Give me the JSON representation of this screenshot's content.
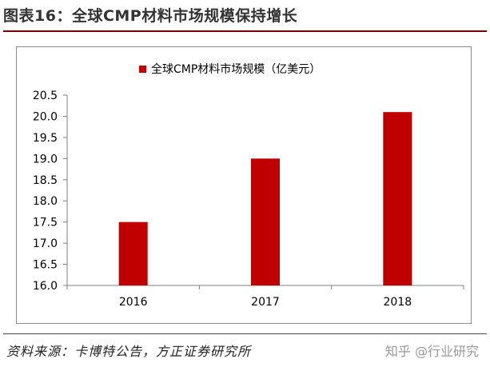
{
  "figure": {
    "title": "图表16：全球CMP材料市场规模保持增长",
    "source": "资料来源：卡博特公告，方正证券研究所",
    "watermark": "知乎 @行业研究"
  },
  "colors": {
    "bar": "#c00000",
    "axis": "#808080",
    "title_rule": "#7a0000"
  },
  "chart_data": {
    "type": "bar",
    "categories": [
      "2016",
      "2017",
      "2018"
    ],
    "series": [
      {
        "name": "全球CMP材料市场规模（亿美元）",
        "values": [
          17.5,
          19.0,
          20.1
        ]
      }
    ],
    "ylim": [
      16.0,
      20.5
    ],
    "yticks": [
      "16.0",
      "16.5",
      "17.0",
      "17.5",
      "18.0",
      "18.5",
      "19.0",
      "19.5",
      "20.0",
      "20.5"
    ],
    "xlabel": "",
    "ylabel": "",
    "grid": false,
    "legend_position": "top-center"
  }
}
